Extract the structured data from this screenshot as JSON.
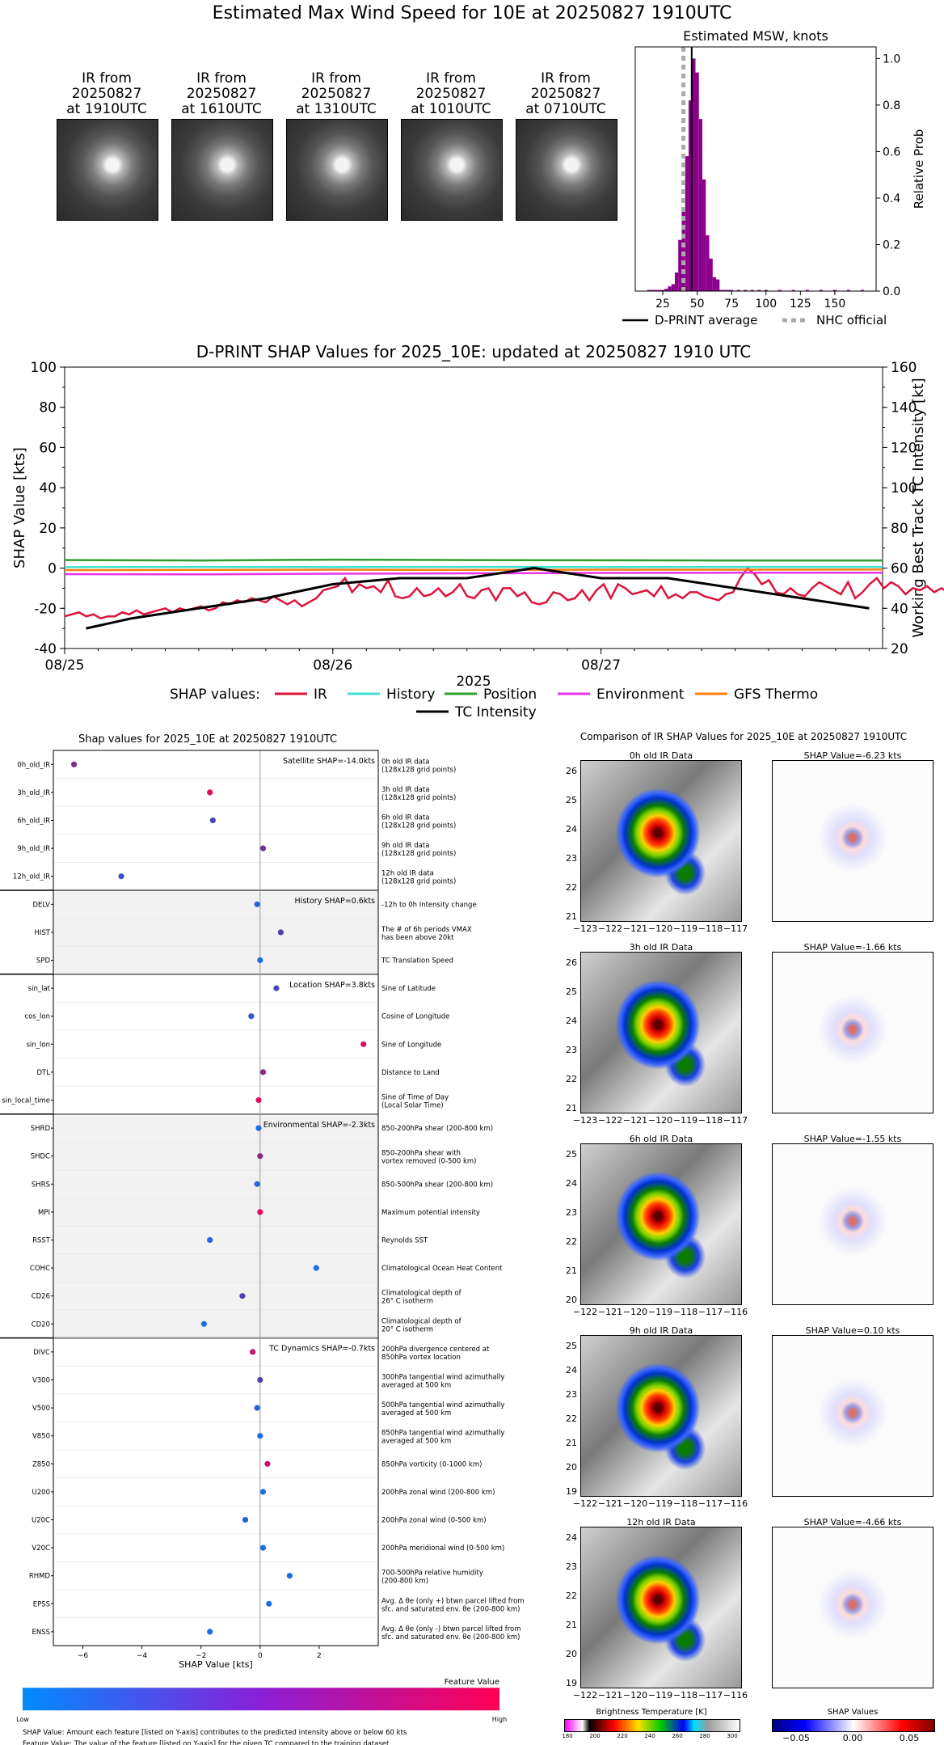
{
  "main_title": "Estimated Max Wind Speed for 10E at 20250827 1910UTC",
  "thumbnails": [
    {
      "line1": "IR from",
      "line2": "20250827",
      "line3": "at 1910UTC"
    },
    {
      "line1": "IR from",
      "line2": "20250827",
      "line3": "at 1610UTC"
    },
    {
      "line1": "IR from",
      "line2": "20250827",
      "line3": "at 1310UTC"
    },
    {
      "line1": "IR from",
      "line2": "20250827",
      "line3": "at 1010UTC"
    },
    {
      "line1": "IR from",
      "line2": "20250827",
      "line3": "at 0710UTC"
    }
  ],
  "hist_chart": {
    "title": "Estimated MSW, knots",
    "ylabel": "Relative Prob",
    "legend_avg": "D-PRINT average",
    "legend_nhc": "NHC official",
    "color": "#8b008b"
  },
  "shap_time_chart": {
    "title": "D-PRINT SHAP Values for 2025_10E: updated at 20250827 1910 UTC",
    "ylabel_left": "SHAP Value [kts]",
    "ylabel_right": "Working Best Track TC Intensity [kt]",
    "xlabel": "2025",
    "legend_prefix": "SHAP values:",
    "colors": {
      "IR": "#dc143c",
      "History": "#40e0d0",
      "Position": "#2ca02c",
      "Environment": "#e833e8",
      "GFS Thermo": "#ff7f0e",
      "TC Intensity": "#000000"
    }
  },
  "beeswarm": {
    "title": "Shap values for 2025_10E at 20250827 1910UTC",
    "xlabel": "SHAP Value [kts]",
    "colorbar_label": "Feature Value",
    "colorbar_low": "Low",
    "colorbar_high": "High",
    "footnote1": "SHAP Value: Amount each feature [listed on Y-axis] contributes to the predicted intensity above or below 60 kts",
    "footnote2": "Feature Value: The value of the feature [listed on Y-axis] for the given TC compared to the training dataset",
    "groups": [
      {
        "label": "Satellite SHAP=-14.0kts"
      },
      {
        "label": "History SHAP=0.6kts"
      },
      {
        "label": "Location SHAP=3.8kts"
      },
      {
        "label": "Environmental SHAP=-2.3kts"
      },
      {
        "label": "TC Dynamics SHAP=-0.7kts"
      }
    ]
  },
  "ir_compare": {
    "title": "Comparison of IR SHAP Values for 2025_10E at 20250827 1910UTC",
    "rows": [
      {
        "ir_title": "0h old IR Data",
        "shap_title": "SHAP Value=-6.23 kts",
        "yticks": [
          "26",
          "25",
          "24",
          "23",
          "22",
          "21"
        ],
        "xticks": [
          "−123",
          "−122",
          "−121",
          "−120",
          "−119",
          "−118",
          "−117"
        ]
      },
      {
        "ir_title": "3h old IR Data",
        "shap_title": "SHAP Value=-1.66 kts",
        "yticks": [
          "26",
          "25",
          "24",
          "23",
          "22",
          "21"
        ],
        "xticks": [
          "−123",
          "−122",
          "−121",
          "−120",
          "−119",
          "−118",
          "−117"
        ]
      },
      {
        "ir_title": "6h old IR Data",
        "shap_title": "SHAP Value=-1.55 kts",
        "yticks": [
          "25",
          "24",
          "23",
          "22",
          "21",
          "20"
        ],
        "xticks": [
          "−122",
          "−121",
          "−120",
          "−119",
          "−118",
          "−117",
          "−116"
        ]
      },
      {
        "ir_title": "9h old IR Data",
        "shap_title": "SHAP Value=0.10 kts",
        "yticks": [
          "25",
          "24",
          "23",
          "22",
          "21",
          "20",
          "19"
        ],
        "xticks": [
          "−122",
          "−121",
          "−120",
          "−119",
          "−118",
          "−117",
          "−116"
        ]
      },
      {
        "ir_title": "12h old IR Data",
        "shap_title": "SHAP Value=-4.66 kts",
        "yticks": [
          "24",
          "23",
          "22",
          "21",
          "20",
          "19"
        ],
        "xticks": [
          "−122",
          "−121",
          "−120",
          "−119",
          "−118",
          "−117",
          "−116"
        ]
      }
    ],
    "bt_label": "Brightness Temperature [K]",
    "bt_ticks": [
      "180",
      "200",
      "220",
      "240",
      "260",
      "280",
      "300"
    ],
    "sv_label": "SHAP Values",
    "sv_ticks": [
      "−0.05",
      "0.00",
      "0.05"
    ]
  },
  "chart_data": [
    {
      "type": "bar",
      "title": "Estimated MSW, knots",
      "xlabel": "",
      "ylabel": "Relative Prob",
      "xlim": [
        5,
        180
      ],
      "ylim": [
        0,
        1.05
      ],
      "xticks": [
        25,
        50,
        75,
        100,
        125,
        150
      ],
      "yticks": [
        0.0,
        0.2,
        0.4,
        0.6,
        0.8,
        1.0
      ],
      "bin_width": 2.5,
      "bins": [
        [
          15,
          0.005
        ],
        [
          17.5,
          0.005
        ],
        [
          20,
          0.005
        ],
        [
          22.5,
          0.005
        ],
        [
          25,
          0.005
        ],
        [
          27.5,
          0.01
        ],
        [
          30,
          0.02
        ],
        [
          32.5,
          0.03
        ],
        [
          35,
          0.08
        ],
        [
          37.5,
          0.22
        ],
        [
          40,
          0.36
        ],
        [
          42.5,
          0.58
        ],
        [
          45,
          0.82
        ],
        [
          47.5,
          1.0
        ],
        [
          50,
          0.94
        ],
        [
          52.5,
          0.74
        ],
        [
          55,
          0.48
        ],
        [
          57.5,
          0.24
        ],
        [
          60,
          0.14
        ],
        [
          62.5,
          0.06
        ],
        [
          65,
          0.05
        ],
        [
          67.5,
          0.005
        ],
        [
          70,
          0.005
        ],
        [
          72.5,
          0.005
        ],
        [
          75,
          0.005
        ],
        [
          80,
          0.005
        ],
        [
          85,
          0.005
        ],
        [
          90,
          0.005
        ],
        [
          95,
          0.005
        ],
        [
          100,
          0.005
        ],
        [
          110,
          0.005
        ],
        [
          120,
          0.005
        ],
        [
          130,
          0.005
        ],
        [
          140,
          0.005
        ],
        [
          150,
          0.005
        ],
        [
          160,
          0.005
        ],
        [
          170,
          0.005
        ]
      ],
      "dprint_average": 46,
      "nhc_official": 40,
      "series": [
        {
          "name": "D-PRINT average"
        },
        {
          "name": "NHC official"
        }
      ]
    },
    {
      "type": "line",
      "title": "D-PRINT SHAP Values for 2025_10E: updated at 20250827 1910 UTC",
      "xlabel": "2025",
      "ylabel": "SHAP Value [kts]",
      "ylabel_right": "Working Best Track TC Intensity [kt]",
      "xlim": [
        0,
        3.05
      ],
      "ylim": [
        -40,
        100
      ],
      "ylim_right": [
        20,
        160
      ],
      "xtick_labels": [
        "08/25",
        "08/26",
        "08/27"
      ],
      "xtick_positions": [
        0,
        1,
        2
      ],
      "yticks": [
        -40,
        -20,
        0,
        20,
        40,
        60,
        80,
        100
      ],
      "yticks_right": [
        20,
        40,
        60,
        80,
        100,
        120,
        140,
        160
      ],
      "series": [
        {
          "name": "IR",
          "x_start": 0,
          "x_step": 0.0268,
          "values": [
            -24,
            -23,
            -22,
            -24,
            -23,
            -25,
            -24,
            -24,
            -22,
            -23,
            -21,
            -23,
            -22,
            -21,
            -20,
            -22,
            -20,
            -21,
            -20,
            -19,
            -21,
            -20,
            -17,
            -18,
            -16,
            -17,
            -15,
            -16,
            -17,
            -14,
            -16,
            -18,
            -16,
            -19,
            -17,
            -15,
            -11,
            -10,
            -9,
            -5,
            -12,
            -8,
            -10,
            -9,
            -12,
            -6,
            -14,
            -15,
            -14,
            -10,
            -14,
            -13,
            -10,
            -14,
            -12,
            -8,
            -14,
            -15,
            -11,
            -10,
            -16,
            -10,
            -10,
            -14,
            -12,
            -17,
            -18,
            -17,
            -12,
            -13,
            -16,
            -15,
            -11,
            -16,
            -11,
            -8,
            -15,
            -8,
            -10,
            -13,
            -12,
            -11,
            -14,
            -9,
            -15,
            -13,
            -15,
            -12,
            -12,
            -14,
            -15,
            -16,
            -13,
            -12,
            -5,
            0,
            -3,
            -8,
            -6,
            -12,
            -13,
            -10,
            -13,
            -14,
            -10,
            -7,
            -9,
            -11,
            -13,
            -7,
            -15,
            -12,
            -8,
            -5,
            -10,
            -7,
            -9,
            -13,
            -10,
            -11,
            -9,
            -12,
            -10,
            -12,
            -13,
            -11,
            -13,
            -8,
            -13,
            -12,
            -12,
            -14,
            -13,
            -12,
            -14,
            -11,
            -12
          ]
        },
        {
          "name": "History",
          "x_start": 0,
          "x_step": 0.5,
          "values": [
            0.5,
            0.6,
            0.5,
            0.6,
            0.5,
            0.6,
            0.6
          ]
        },
        {
          "name": "Position",
          "x_start": 0,
          "x_step": 0.5,
          "values": [
            4.0,
            3.8,
            4.2,
            4.0,
            3.9,
            3.8,
            3.8
          ]
        },
        {
          "name": "Environment",
          "x_start": 0,
          "x_step": 0.5,
          "values": [
            -3.0,
            -3.1,
            -2.8,
            -2.6,
            -2.4,
            -2.3,
            -2.3
          ]
        },
        {
          "name": "GFS Thermo",
          "x_start": 0,
          "x_step": 0.5,
          "values": [
            -1.0,
            -0.9,
            -0.8,
            -0.9,
            -0.8,
            -0.8,
            -0.7
          ]
        },
        {
          "name": "TC Intensity",
          "axis": "right",
          "x": [
            0.08,
            0.25,
            0.5,
            0.75,
            1.0,
            1.25,
            1.5,
            1.75,
            2.0,
            2.25,
            2.5,
            2.75,
            3.0
          ],
          "values": [
            30,
            35,
            40,
            45,
            52,
            55,
            55,
            60,
            55,
            55,
            50,
            45,
            40
          ]
        }
      ]
    },
    {
      "type": "scatter",
      "title": "Shap values for 2025_10E at 20250827 1910UTC",
      "xlabel": "SHAP Value [kts]",
      "ylabel": "",
      "xlim": [
        -7,
        4
      ],
      "xticks": [
        -6,
        -4,
        -2,
        0,
        2
      ],
      "features": [
        {
          "name": "0h_old_IR",
          "desc1": "0h old IR data",
          "desc2": "(128x128 grid points)",
          "shap": -6.3,
          "fv": 0.55,
          "group": 0
        },
        {
          "name": "3h_old_IR",
          "desc1": "3h old IR data",
          "desc2": "(128x128 grid points)",
          "shap": -1.7,
          "fv": 0.9,
          "group": 0
        },
        {
          "name": "6h_old_IR",
          "desc1": "6h old IR data",
          "desc2": "(128x128 grid points)",
          "shap": -1.6,
          "fv": 0.3,
          "group": 0
        },
        {
          "name": "9h_old_IR",
          "desc1": "9h old IR data",
          "desc2": "(128x128 grid points)",
          "shap": 0.1,
          "fv": 0.45,
          "group": 0
        },
        {
          "name": "12h_old_IR",
          "desc1": "12h old IR data",
          "desc2": "(128x128 grid points)",
          "shap": -4.7,
          "fv": 0.25,
          "group": 0
        },
        {
          "name": "DELV",
          "desc1": "-12h to 0h Intensity change",
          "desc2": "",
          "shap": -0.1,
          "fv": 0.15,
          "group": 1
        },
        {
          "name": "HIST",
          "desc1": "The # of 6h periods VMAX",
          "desc2": "has been above 20kt",
          "shap": 0.7,
          "fv": 0.35,
          "group": 1
        },
        {
          "name": "SPD",
          "desc1": "TC Translation Speed",
          "desc2": "",
          "shap": 0.0,
          "fv": 0.1,
          "group": 1
        },
        {
          "name": "sin_lat",
          "desc1": "Sine of Latitude",
          "desc2": "",
          "shap": 0.55,
          "fv": 0.3,
          "group": 2
        },
        {
          "name": "cos_lon",
          "desc1": "Cosine of Longitude",
          "desc2": "",
          "shap": -0.3,
          "fv": 0.2,
          "group": 2
        },
        {
          "name": "sin_lon",
          "desc1": "Sine of Longitude",
          "desc2": "",
          "shap": 3.5,
          "fv": 0.85,
          "group": 2
        },
        {
          "name": "DTL",
          "desc1": "Distance to Land",
          "desc2": "",
          "shap": 0.1,
          "fv": 0.6,
          "group": 2
        },
        {
          "name": "sin_local_time",
          "desc1": "Sine of Time of Day",
          "desc2": "(Local Solar Time)",
          "shap": -0.05,
          "fv": 0.9,
          "group": 2
        },
        {
          "name": "SHRD",
          "desc1": "850-200hPa shear (200-800 km)",
          "desc2": "",
          "shap": -0.05,
          "fv": 0.1,
          "group": 3
        },
        {
          "name": "SHDC",
          "desc1": "850-200hPa shear with",
          "desc2": "vortex removed (0-500 km)",
          "shap": 0.0,
          "fv": 0.6,
          "group": 3
        },
        {
          "name": "SHRS",
          "desc1": "850-500hPa shear (200-800 km)",
          "desc2": "",
          "shap": -0.1,
          "fv": 0.15,
          "group": 3
        },
        {
          "name": "MPI",
          "desc1": "Maximum potential intensity",
          "desc2": "",
          "shap": 0.0,
          "fv": 0.9,
          "group": 3
        },
        {
          "name": "RSST",
          "desc1": "Reynolds SST",
          "desc2": "",
          "shap": -1.7,
          "fv": 0.15,
          "group": 3
        },
        {
          "name": "COHC",
          "desc1": "Climatological Ocean Heat Content",
          "desc2": "",
          "shap": 1.9,
          "fv": 0.1,
          "group": 3
        },
        {
          "name": "CD26",
          "desc1": "Climatological depth of",
          "desc2": "26° C isotherm",
          "shap": -0.6,
          "fv": 0.35,
          "group": 3
        },
        {
          "name": "CD20",
          "desc1": "Climatological depth of",
          "desc2": "20° C isotherm",
          "shap": -1.9,
          "fv": 0.1,
          "group": 3
        },
        {
          "name": "DIVC",
          "desc1": "200hPa divergence centered at",
          "desc2": "850hPa vortex location",
          "shap": -0.25,
          "fv": 0.85,
          "group": 4
        },
        {
          "name": "V300",
          "desc1": "300hPa tangential wind azimuthally",
          "desc2": "averaged at 500 km",
          "shap": 0.0,
          "fv": 0.35,
          "group": 4
        },
        {
          "name": "V500",
          "desc1": "500hPa tangential wind azimuthally",
          "desc2": "averaged at 500 km",
          "shap": -0.1,
          "fv": 0.15,
          "group": 4
        },
        {
          "name": "V850",
          "desc1": "850hPa tangential wind azimuthally",
          "desc2": "averaged at 500 km",
          "shap": 0.0,
          "fv": 0.1,
          "group": 4
        },
        {
          "name": "Z850",
          "desc1": "850hPa vorticity (0-1000 km)",
          "desc2": "",
          "shap": 0.25,
          "fv": 0.8,
          "group": 4
        },
        {
          "name": "U200",
          "desc1": "200hPa zonal wind (200-800 km)",
          "desc2": "",
          "shap": 0.1,
          "fv": 0.1,
          "group": 4
        },
        {
          "name": "U20C",
          "desc1": "200hPa zonal wind (0-500 km)",
          "desc2": "",
          "shap": -0.5,
          "fv": 0.15,
          "group": 4
        },
        {
          "name": "V20C",
          "desc1": "200hPa meridional wind (0-500 km)",
          "desc2": "",
          "shap": 0.1,
          "fv": 0.1,
          "group": 4
        },
        {
          "name": "RHMD",
          "desc1": "700-500hPa relative humidity",
          "desc2": "(200-800 km)",
          "shap": 1.0,
          "fv": 0.1,
          "group": 4
        },
        {
          "name": "EPSS",
          "desc1": "Avg. Δ θe (only +) btwn parcel lifted from",
          "desc2": "sfc. and saturated env. θe (200-800 km)",
          "shap": 0.3,
          "fv": 0.1,
          "group": 4
        },
        {
          "name": "ENSS",
          "desc1": "Avg. Δ θe (only -) btwn parcel lifted from",
          "desc2": "sfc. and saturated env. θe (200-800 km)",
          "shap": -1.7,
          "fv": 0.1,
          "group": 4
        }
      ]
    }
  ]
}
